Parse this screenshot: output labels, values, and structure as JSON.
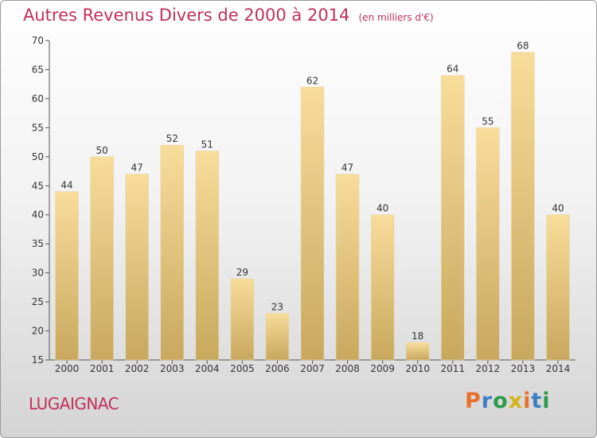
{
  "header": {
    "title": "Autres Revenus Divers de 2000 à 2014",
    "unit": "(en milliers d'€)"
  },
  "footer": {
    "commune": "LUGAIGNAC",
    "logo": {
      "text": "Proxiti",
      "colors": [
        "#e8702a",
        "#3b7fc4",
        "#2f9a4a",
        "#d4b21a",
        "#e8702a",
        "#3b7fc4",
        "#2f9a4a"
      ]
    }
  },
  "colors": {
    "title": "#c0305a",
    "bar_light": "#f8dc9a",
    "bar_dark": "#c8a85e"
  },
  "chart_data": {
    "type": "bar",
    "title": "Autres Revenus Divers de 2000 à 2014",
    "xlabel": "",
    "ylabel": "",
    "categories": [
      "2000",
      "2001",
      "2002",
      "2003",
      "2004",
      "2005",
      "2006",
      "2007",
      "2008",
      "2009",
      "2010",
      "2011",
      "2012",
      "2013",
      "2014"
    ],
    "values": [
      44,
      50,
      47,
      52,
      51,
      29,
      23,
      62,
      47,
      40,
      18,
      64,
      55,
      68,
      40
    ],
    "ylim": [
      15,
      70
    ],
    "yticks": [
      15,
      20,
      25,
      30,
      35,
      40,
      45,
      50,
      55,
      60,
      65,
      70
    ],
    "grid": false,
    "data_labels": true
  }
}
